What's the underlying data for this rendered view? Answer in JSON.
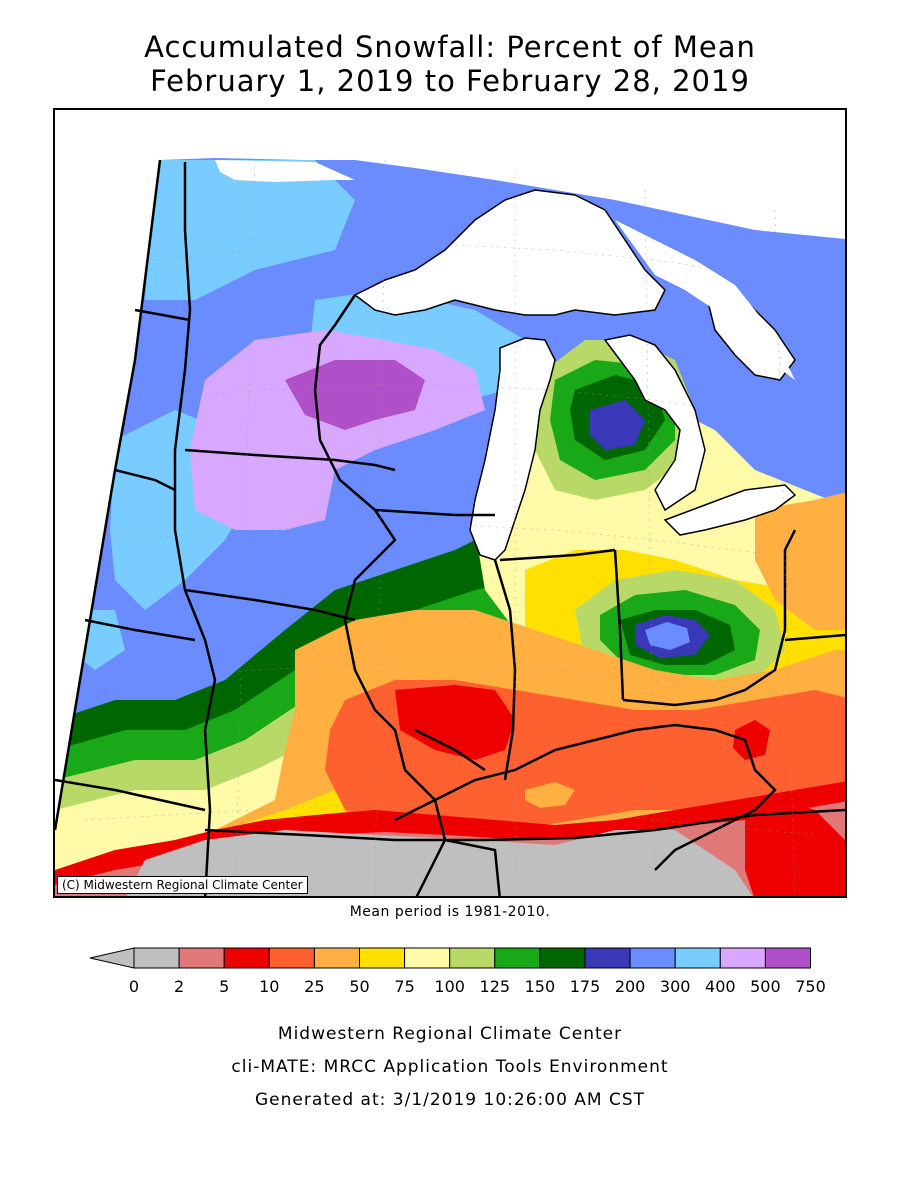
{
  "title": {
    "line1": "Accumulated Snowfall: Percent of Mean",
    "line2": "February 1, 2019 to February 28, 2019"
  },
  "map": {
    "copyright": "(C) Midwestern Regional Climate Center",
    "mean_period": "Mean period is 1981-2010."
  },
  "legend": {
    "ticks": [
      "0",
      "2",
      "5",
      "10",
      "25",
      "50",
      "75",
      "100",
      "125",
      "150",
      "175",
      "200",
      "300",
      "400",
      "500",
      "750"
    ],
    "colors": [
      "#bfbfbf",
      "#e07878",
      "#ee0000",
      "#ff6030",
      "#ffb040",
      "#ffe000",
      "#fffaa8",
      "#b8d868",
      "#18a818",
      "#006600",
      "#3838b8",
      "#6a8cff",
      "#78ccff",
      "#d8a8ff",
      "#b050c8"
    ],
    "underflow_color": "#bfbfbf"
  },
  "footer": {
    "line1": "Midwestern Regional Climate Center",
    "line2": "cli-MATE: MRCC Application Tools Environment",
    "line3": "Generated at: 3/1/2019 10:26:00 AM CST"
  }
}
